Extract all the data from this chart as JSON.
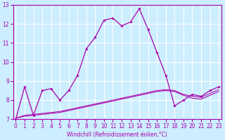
{
  "xlabel": "Windchill (Refroidissement éolien,°C)",
  "background_color": "#cceeff",
  "grid_color": "#ffffff",
  "line_color": "#aa00aa",
  "hours": [
    0,
    1,
    2,
    3,
    4,
    5,
    6,
    7,
    8,
    9,
    10,
    11,
    12,
    13,
    14,
    15,
    16,
    17,
    18,
    19,
    20,
    21,
    22,
    23
  ],
  "temp_line": [
    7.0,
    8.7,
    7.2,
    8.5,
    8.6,
    8.0,
    8.5,
    9.3,
    10.7,
    11.3,
    12.2,
    12.3,
    11.9,
    12.1,
    12.8,
    11.7,
    10.5,
    9.3,
    7.7,
    8.0,
    8.3,
    8.2,
    8.5,
    8.7
  ],
  "line2": [
    7.05,
    7.2,
    7.25,
    7.3,
    7.35,
    7.4,
    7.5,
    7.6,
    7.7,
    7.8,
    7.9,
    8.0,
    8.1,
    8.2,
    8.3,
    8.4,
    8.5,
    8.55,
    8.5,
    8.3,
    8.2,
    8.15,
    8.35,
    8.55
  ],
  "line3": [
    7.05,
    7.15,
    7.2,
    7.25,
    7.3,
    7.35,
    7.45,
    7.55,
    7.65,
    7.75,
    7.85,
    7.95,
    8.05,
    8.15,
    8.25,
    8.35,
    8.45,
    8.5,
    8.45,
    8.25,
    8.1,
    8.05,
    8.25,
    8.45
  ],
  "ylim": [
    7.0,
    13.0
  ],
  "yticks": [
    7,
    8,
    9,
    10,
    11,
    12,
    13
  ],
  "xlim_min": 0,
  "xlim_max": 23,
  "tick_fontsize": 5.5,
  "xlabel_fontsize": 5.5
}
